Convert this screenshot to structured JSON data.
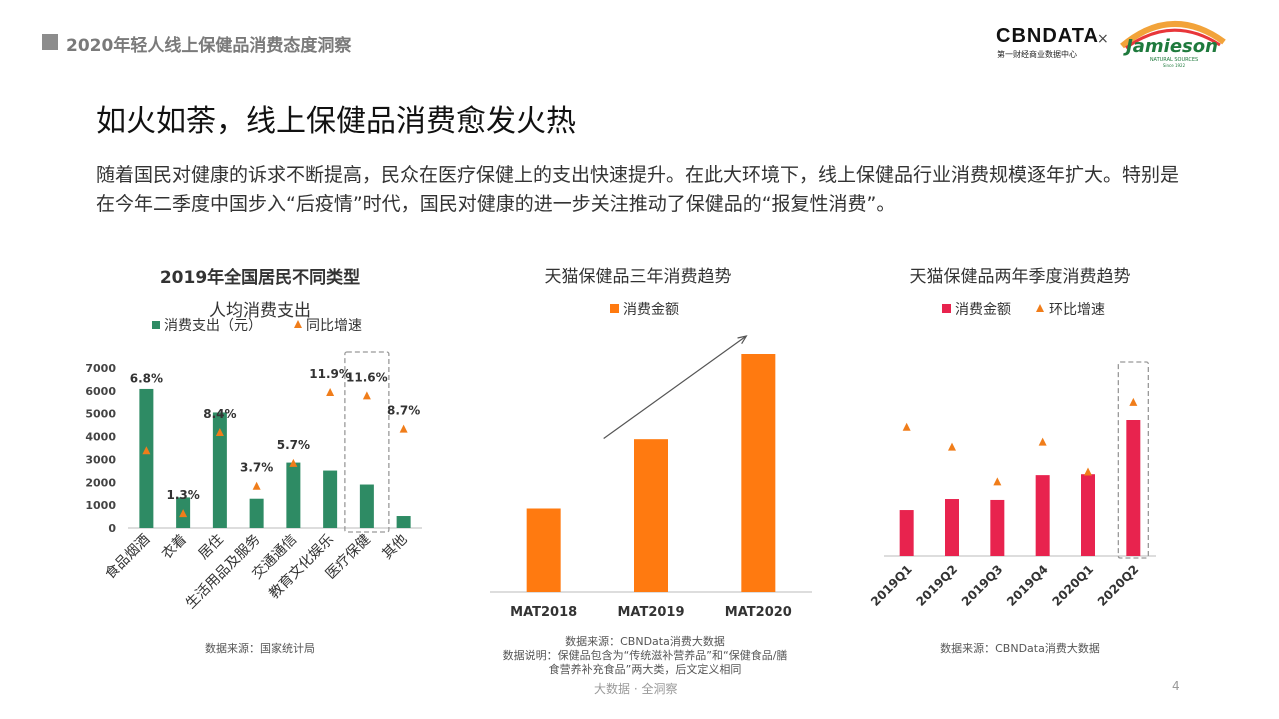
{
  "header": {
    "title": "2020年轻人线上保健品消费态度洞察",
    "brand": "CBNDATA",
    "brand_sub": "第一财经商业数据中心",
    "times": "×",
    "partner": "Jamieson",
    "partner_sub": "NATURAL SOURCES",
    "partner_since": "Since 1922"
  },
  "main_title": "如火如荼，线上保健品消费愈发火热",
  "intro": "随着国民对健康的诉求不断提高，民众在医疗保健上的支出快速提升。在此大环境下，线上保健品行业消费规模逐年扩大。特别是在今年二季度中国步入“后疫情”时代，国民对健康的进一步关注推动了保健品的“报复性消费”。",
  "colors": {
    "green": "#2e8b64",
    "orange": "#ff7a10",
    "crimson": "#e8234e",
    "marker": "#f07d1a"
  },
  "chart_data": [
    {
      "type": "bar",
      "title_line1": "2019年全国居民不同类型",
      "title_line2": "人均消费支出",
      "legend": [
        "消费支出（元）",
        "同比增速"
      ],
      "categories": [
        "食品烟酒",
        "衣着",
        "居住",
        "生活用品及服务",
        "交通通信",
        "教育文化娱乐",
        "医疗保健",
        "其他"
      ],
      "series": [
        {
          "name": "消费支出（元）",
          "values": [
            6084,
            1338,
            5055,
            1281,
            2862,
            2513,
            1902,
            524
          ]
        },
        {
          "name": "同比增速",
          "values": [
            6.8,
            1.3,
            8.4,
            3.7,
            5.7,
            11.9,
            11.6,
            8.7
          ],
          "labels": [
            "6.8%",
            "1.3%",
            "8.4%",
            "3.7%",
            "5.7%",
            "11.9%",
            "11.6%",
            "8.7%"
          ]
        }
      ],
      "yticks": [
        0,
        1000,
        2000,
        3000,
        4000,
        5000,
        6000,
        7000
      ],
      "ylim": [
        0,
        7000
      ],
      "highlight": "医疗保健",
      "source": "数据来源：国家统计局"
    },
    {
      "type": "bar",
      "title": "天猫保健品三年消费趋势",
      "legend": [
        "消费金额"
      ],
      "categories": [
        "MAT2018",
        "MAT2019",
        "MAT2020"
      ],
      "values": [
        100,
        183,
        285
      ],
      "source": "数据来源：CBNData消费大数据",
      "note_line1": "数据说明：保健品包含为“传统滋补营养品”和“保健食品/膳",
      "note_line2": "食营养补充食品”两大类，后文定义相同"
    },
    {
      "type": "bar",
      "title": "天猫保健品两年季度消费趋势",
      "legend": [
        "消费金额",
        "环比增速"
      ],
      "categories": [
        "2019Q1",
        "2019Q2",
        "2019Q3",
        "2019Q4",
        "2020Q1",
        "2020Q2"
      ],
      "series": [
        {
          "name": "消费金额",
          "values": [
            100,
            124,
            122,
            176,
            178,
            296
          ]
        },
        {
          "name": "环比增速",
          "values": [
            0.52,
            0.44,
            0.3,
            0.46,
            0.34,
            0.62
          ]
        }
      ],
      "highlight": "2020Q2",
      "source": "数据来源：CBNData消费大数据"
    }
  ],
  "footer": "大数据 · 全洞察",
  "page_number": "4"
}
